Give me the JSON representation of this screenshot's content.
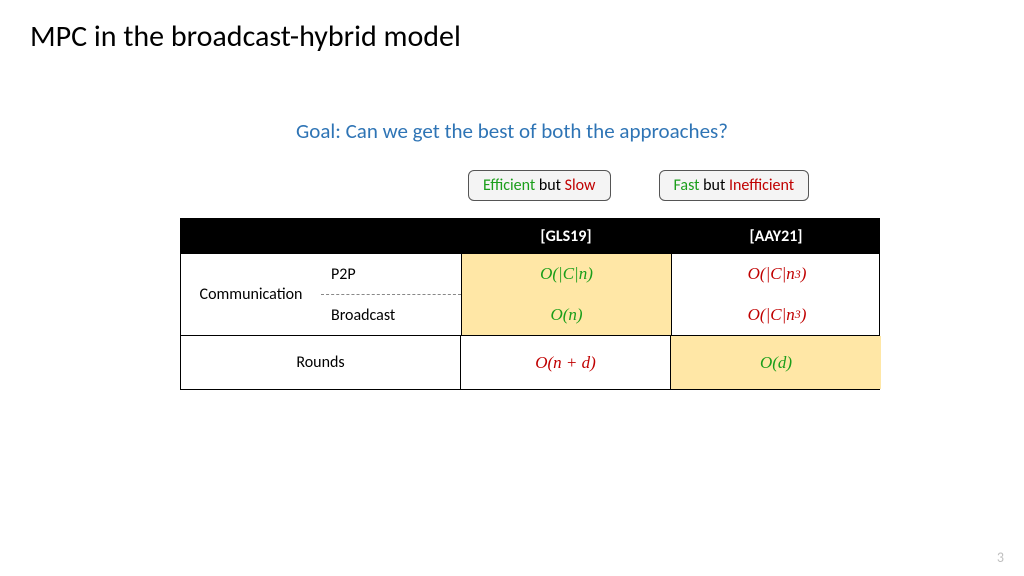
{
  "colors": {
    "green": "#1a9e1a",
    "red": "#c00000",
    "blue": "#2e74b5",
    "black": "#000000",
    "highlight": "#ffe7a6"
  },
  "title": "MPC in the broadcast-hybrid model",
  "goal": "Goal: Can we get the best of both the approaches?",
  "badges": {
    "left": {
      "a": "Efficient",
      "mid": " but ",
      "b": "Slow"
    },
    "right": {
      "a": "Fast",
      "mid": " but ",
      "b": "Inefficient"
    }
  },
  "table": {
    "headers": {
      "col2": "[GLS19]",
      "col3": "[AAY21]"
    },
    "row1": {
      "label": "Communication",
      "sub1": "P2P",
      "sub2": "Broadcast",
      "gls_p2p": "O(|C|n)",
      "gls_bc": "O(n)",
      "aay_p2p_pre": "O(|C|n",
      "aay_p2p_sup": "3",
      "aay_p2p_post": ")",
      "aay_bc_pre": "O(|C|n",
      "aay_bc_sup": "3",
      "aay_bc_post": ")"
    },
    "row2": {
      "label": "Rounds",
      "gls": "O(n + d)",
      "aay": "O(d)"
    }
  },
  "pagenum": "3"
}
